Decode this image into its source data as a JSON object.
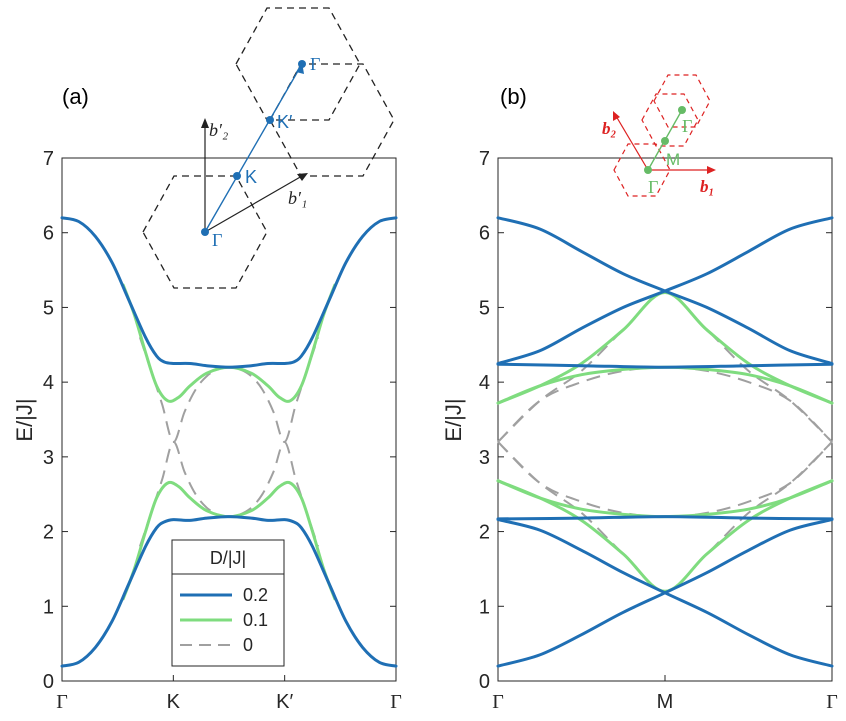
{
  "chart_data": [
    {
      "id": "a",
      "type": "line",
      "panel_label": "(a)",
      "ylabel": "E/|J|",
      "xlabel": "",
      "ylim": [
        0,
        7
      ],
      "yticks": [
        "0",
        "1",
        "2",
        "3",
        "4",
        "5",
        "6",
        "7"
      ],
      "xticks": [
        "Γ",
        "K",
        "K′",
        "Γ"
      ],
      "x_tick_positions": [
        0,
        1,
        2,
        3
      ],
      "legend": {
        "title": "D/|J|",
        "location": "bottom-center",
        "entries": [
          "0.2",
          "0.1",
          "0"
        ]
      },
      "series": [
        {
          "name": "0.2",
          "color": "#1f6fb4",
          "style": "solid",
          "x": [
            0,
            0.15,
            0.3,
            0.45,
            0.6,
            0.75,
            0.85,
            0.92,
            1,
            1.15,
            1.3,
            1.5,
            1.7,
            1.85,
            2,
            2.08,
            2.15,
            2.25,
            2.4,
            2.55,
            2.7,
            2.85,
            3
          ],
          "upper": [
            6.2,
            6.15,
            5.95,
            5.6,
            5.1,
            4.6,
            4.35,
            4.27,
            4.25,
            4.25,
            4.22,
            4.2,
            4.22,
            4.25,
            4.25,
            4.27,
            4.35,
            4.6,
            5.1,
            5.6,
            5.95,
            6.15,
            6.2
          ],
          "lower": [
            0.2,
            0.25,
            0.45,
            0.8,
            1.3,
            1.8,
            2.05,
            2.13,
            2.16,
            2.15,
            2.18,
            2.2,
            2.18,
            2.15,
            2.16,
            2.13,
            2.05,
            1.8,
            1.3,
            0.8,
            0.45,
            0.25,
            0.2
          ]
        },
        {
          "name": "0.1",
          "color": "#7fdc7f",
          "style": "solid",
          "x": [
            0.55,
            0.65,
            0.75,
            0.85,
            0.95,
            1.05,
            1.15,
            1.3,
            1.5,
            1.7,
            1.85,
            1.95,
            2.05,
            2.15,
            2.25,
            2.35,
            2.45
          ],
          "upper": [
            5.3,
            4.9,
            4.4,
            3.95,
            3.75,
            3.8,
            3.95,
            4.12,
            4.2,
            4.12,
            3.95,
            3.8,
            3.75,
            3.95,
            4.4,
            4.9,
            5.3
          ],
          "lower": [
            1.1,
            1.5,
            2.0,
            2.45,
            2.65,
            2.6,
            2.45,
            2.28,
            2.2,
            2.28,
            2.45,
            2.6,
            2.65,
            2.45,
            2.0,
            1.5,
            1.1
          ]
        },
        {
          "name": "0",
          "color": "#a0a0a0",
          "style": "dashed",
          "x": [
            0.7,
            0.8,
            0.9,
            1,
            1.1,
            1.2,
            1.3,
            1.4,
            1.5,
            1.6,
            1.7,
            1.8,
            1.9,
            2,
            2.1,
            2.2,
            2.3
          ],
          "upper": [
            4.6,
            4.15,
            3.7,
            3.2,
            3.6,
            3.9,
            4.08,
            4.17,
            4.2,
            4.17,
            4.08,
            3.9,
            3.6,
            3.2,
            3.7,
            4.15,
            4.6
          ],
          "lower": [
            1.8,
            2.25,
            2.7,
            3.2,
            2.8,
            2.5,
            2.32,
            2.23,
            2.2,
            2.23,
            2.32,
            2.5,
            2.8,
            3.2,
            2.7,
            2.25,
            1.8
          ]
        }
      ],
      "inset": {
        "label_b2": "b′₂",
        "label_b1": "b′₁",
        "points": [
          "Γ",
          "K",
          "K′",
          "Γ"
        ],
        "color": "#1f6fb4"
      }
    },
    {
      "id": "b",
      "type": "line",
      "panel_label": "(b)",
      "ylabel": "E/|J|",
      "xlabel": "",
      "ylim": [
        0,
        7
      ],
      "yticks": [
        "0",
        "1",
        "2",
        "3",
        "4",
        "5",
        "6",
        "7"
      ],
      "xticks": [
        "Γ",
        "M",
        "Γ"
      ],
      "x_tick_positions": [
        0,
        1,
        2
      ],
      "series": [
        {
          "name": "0.2",
          "color": "#1f6fb4",
          "style": "solid",
          "curves": [
            [
              [
                0,
                6.2
              ],
              [
                0.25,
                6.05
              ],
              [
                0.5,
                5.75
              ],
              [
                0.75,
                5.45
              ],
              [
                1,
                5.22
              ],
              [
                1.25,
                5.0
              ],
              [
                1.5,
                4.72
              ],
              [
                1.75,
                4.42
              ],
              [
                2,
                4.25
              ]
            ],
            [
              [
                0,
                4.25
              ],
              [
                0.25,
                4.42
              ],
              [
                0.5,
                4.72
              ],
              [
                0.75,
                5.0
              ],
              [
                1,
                5.22
              ],
              [
                1.25,
                5.45
              ],
              [
                1.5,
                5.75
              ],
              [
                1.75,
                6.05
              ],
              [
                2,
                6.2
              ]
            ],
            [
              [
                0,
                4.24
              ],
              [
                0.5,
                4.22
              ],
              [
                1,
                4.2
              ],
              [
                1.5,
                4.22
              ],
              [
                2,
                4.24
              ]
            ],
            [
              [
                0,
                0.2
              ],
              [
                0.25,
                0.35
              ],
              [
                0.5,
                0.62
              ],
              [
                0.75,
                0.92
              ],
              [
                1,
                1.18
              ],
              [
                1.25,
                1.45
              ],
              [
                1.5,
                1.75
              ],
              [
                1.75,
                2.02
              ],
              [
                2,
                2.16
              ]
            ],
            [
              [
                0,
                2.16
              ],
              [
                0.25,
                2.02
              ],
              [
                0.5,
                1.75
              ],
              [
                0.75,
                1.45
              ],
              [
                1,
                1.18
              ],
              [
                1.25,
                0.92
              ],
              [
                1.5,
                0.62
              ],
              [
                1.75,
                0.35
              ],
              [
                2,
                0.2
              ]
            ],
            [
              [
                0,
                2.17
              ],
              [
                0.5,
                2.18
              ],
              [
                1,
                2.2
              ],
              [
                1.5,
                2.18
              ],
              [
                2,
                2.17
              ]
            ]
          ]
        },
        {
          "name": "0.1",
          "color": "#7fdc7f",
          "style": "solid",
          "curves": [
            [
              [
                0,
                3.72
              ],
              [
                0.25,
                3.95
              ],
              [
                0.5,
                4.25
              ],
              [
                0.75,
                4.7
              ],
              [
                1,
                5.2
              ],
              [
                1.25,
                4.7
              ],
              [
                1.5,
                4.25
              ],
              [
                1.75,
                3.95
              ],
              [
                2,
                3.72
              ]
            ],
            [
              [
                0,
                3.72
              ],
              [
                0.25,
                3.95
              ],
              [
                0.5,
                4.1
              ],
              [
                0.75,
                4.17
              ],
              [
                1,
                4.2
              ],
              [
                1.25,
                4.17
              ],
              [
                1.5,
                4.1
              ],
              [
                1.75,
                3.95
              ],
              [
                2,
                3.72
              ]
            ],
            [
              [
                0,
                2.68
              ],
              [
                0.25,
                2.45
              ],
              [
                0.5,
                2.15
              ],
              [
                0.75,
                1.7
              ],
              [
                1,
                1.2
              ],
              [
                1.25,
                1.7
              ],
              [
                1.5,
                2.15
              ],
              [
                1.75,
                2.45
              ],
              [
                2,
                2.68
              ]
            ],
            [
              [
                0,
                2.68
              ],
              [
                0.25,
                2.45
              ],
              [
                0.5,
                2.3
              ],
              [
                0.75,
                2.23
              ],
              [
                1,
                2.2
              ],
              [
                1.25,
                2.23
              ],
              [
                1.5,
                2.3
              ],
              [
                1.75,
                2.45
              ],
              [
                2,
                2.68
              ]
            ]
          ]
        },
        {
          "name": "0",
          "color": "#a0a0a0",
          "style": "dashed",
          "curves": [
            [
              [
                0,
                3.2
              ],
              [
                0.25,
                3.75
              ],
              [
                0.5,
                4.15
              ],
              [
                0.75,
                4.7
              ],
              [
                1,
                5.2
              ],
              [
                1.25,
                4.7
              ],
              [
                1.5,
                4.15
              ],
              [
                1.75,
                3.75
              ],
              [
                2,
                3.2
              ]
            ],
            [
              [
                0,
                3.2
              ],
              [
                0.25,
                3.75
              ],
              [
                0.5,
                4.0
              ],
              [
                0.75,
                4.15
              ],
              [
                1,
                4.2
              ],
              [
                1.25,
                4.15
              ],
              [
                1.5,
                4.0
              ],
              [
                1.75,
                3.75
              ],
              [
                2,
                3.2
              ]
            ],
            [
              [
                0,
                3.2
              ],
              [
                0.25,
                2.65
              ],
              [
                0.5,
                2.25
              ],
              [
                0.75,
                1.7
              ],
              [
                1,
                1.2
              ],
              [
                1.25,
                1.7
              ],
              [
                1.5,
                2.25
              ],
              [
                1.75,
                2.65
              ],
              [
                2,
                3.2
              ]
            ],
            [
              [
                0,
                3.2
              ],
              [
                0.25,
                2.65
              ],
              [
                0.5,
                2.4
              ],
              [
                0.75,
                2.25
              ],
              [
                1,
                2.2
              ],
              [
                1.25,
                2.25
              ],
              [
                1.5,
                2.4
              ],
              [
                1.75,
                2.65
              ],
              [
                2,
                3.2
              ]
            ]
          ]
        }
      ],
      "inset": {
        "label_b2": "b₂",
        "label_b1": "b₁",
        "points": [
          "Γ",
          "M",
          "Γ"
        ],
        "color": "#66bb66",
        "arrow_color": "#dd2222"
      }
    }
  ]
}
